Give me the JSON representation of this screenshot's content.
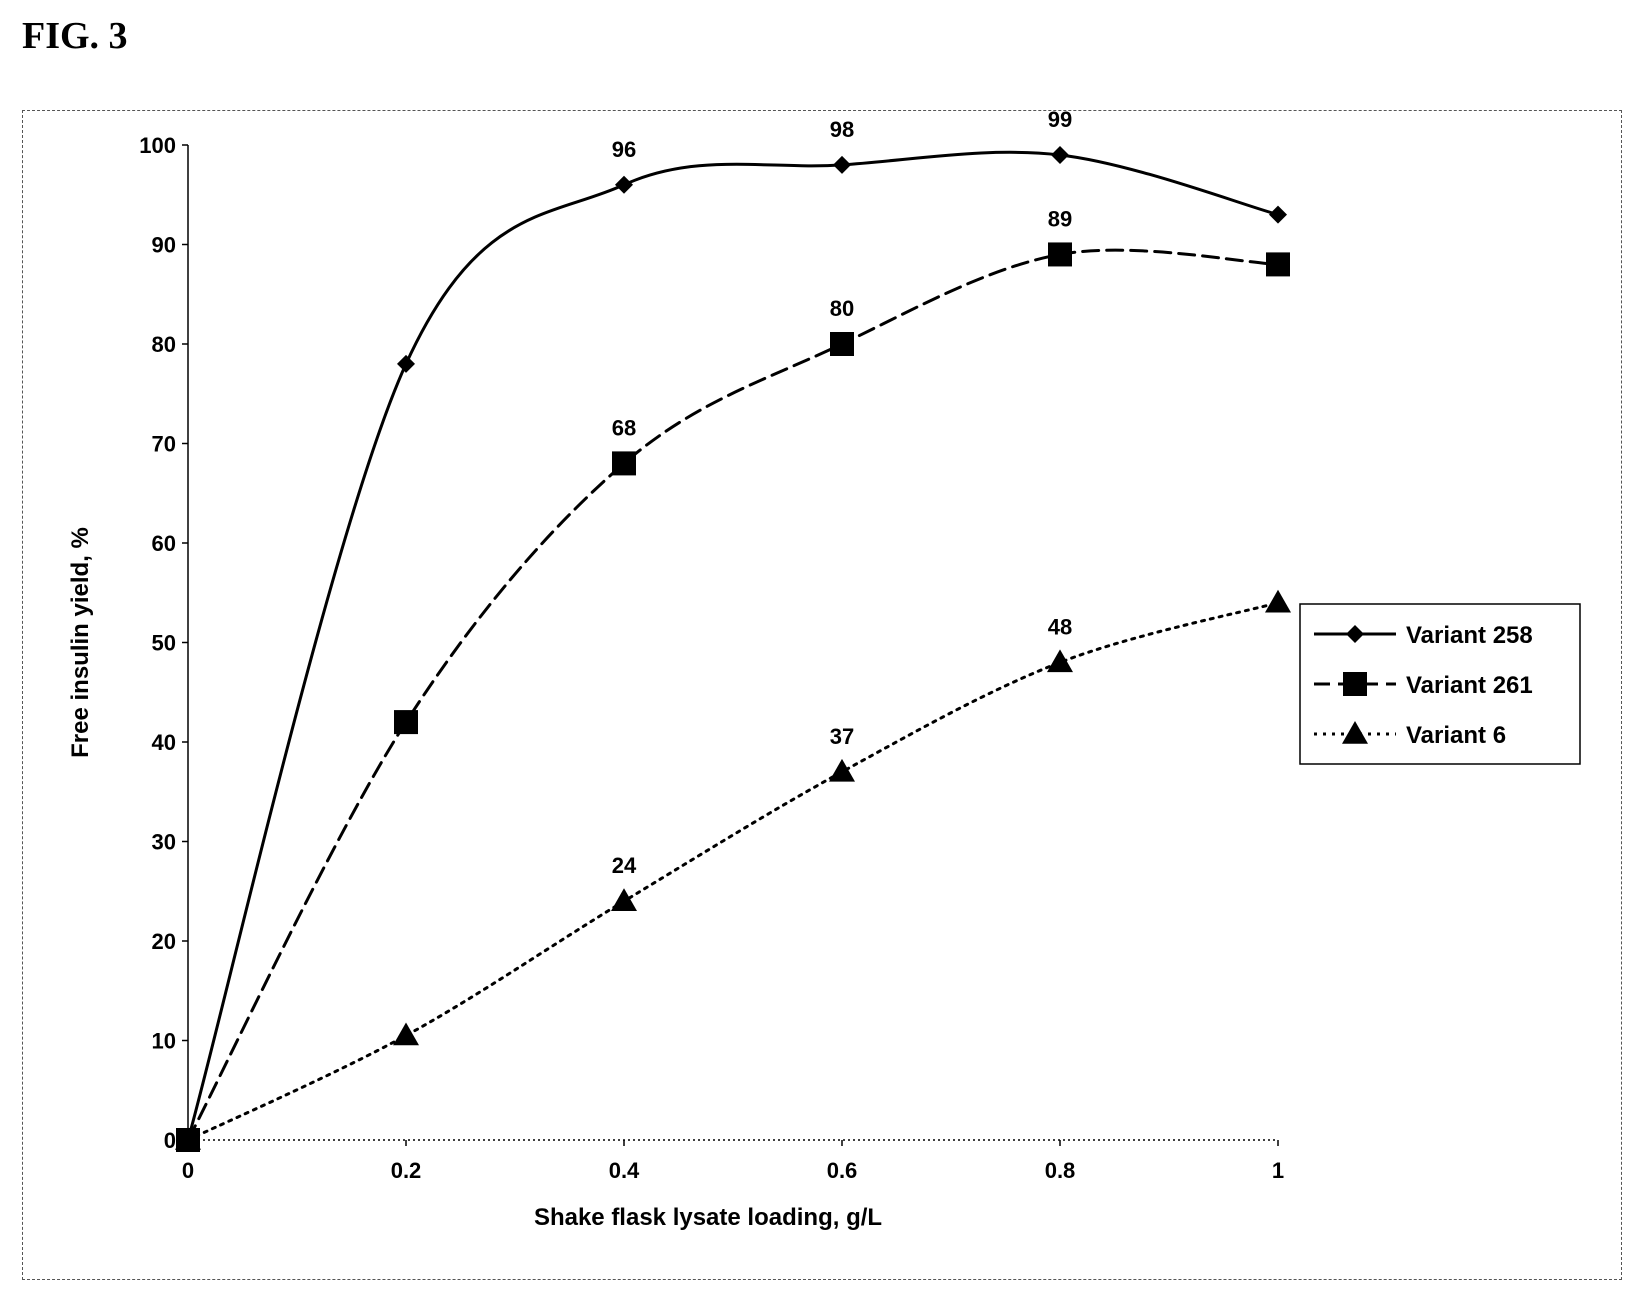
{
  "figure": {
    "label": "FIG. 3"
  },
  "chart_data": {
    "type": "line",
    "title": "",
    "xlabel": "Shake flask lysate loading,  g/L",
    "ylabel": "Free insulin yield, %",
    "xlim": [
      0,
      1
    ],
    "ylim": [
      0,
      100
    ],
    "x_ticks": [
      "0",
      "0.2",
      "0.4",
      "0.6",
      "0.8",
      "1"
    ],
    "y_ticks": [
      "0",
      "10",
      "20",
      "30",
      "40",
      "50",
      "60",
      "70",
      "80",
      "90",
      "100"
    ],
    "x": [
      0,
      0.2,
      0.4,
      0.6,
      0.8,
      1
    ],
    "grid": false,
    "legend_position": "right",
    "series": [
      {
        "name": "Variant 258",
        "values": [
          0,
          78,
          96,
          98,
          99,
          93
        ],
        "point_labels": [
          "",
          "",
          "96",
          "98",
          "99",
          ""
        ],
        "line_style": "solid",
        "marker": "diamond",
        "color": "#000000"
      },
      {
        "name": "Variant 261",
        "values": [
          0,
          42,
          68,
          80,
          89,
          88
        ],
        "point_labels": [
          "",
          "",
          "68",
          "80",
          "89",
          ""
        ],
        "line_style": "dashed",
        "marker": "square",
        "color": "#000000"
      },
      {
        "name": "Variant 6",
        "values": [
          0,
          10.5,
          24,
          37,
          48,
          54
        ],
        "point_labels": [
          "",
          "",
          "24",
          "37",
          "48",
          ""
        ],
        "line_style": "dotted",
        "marker": "triangle",
        "color": "#000000"
      }
    ]
  }
}
